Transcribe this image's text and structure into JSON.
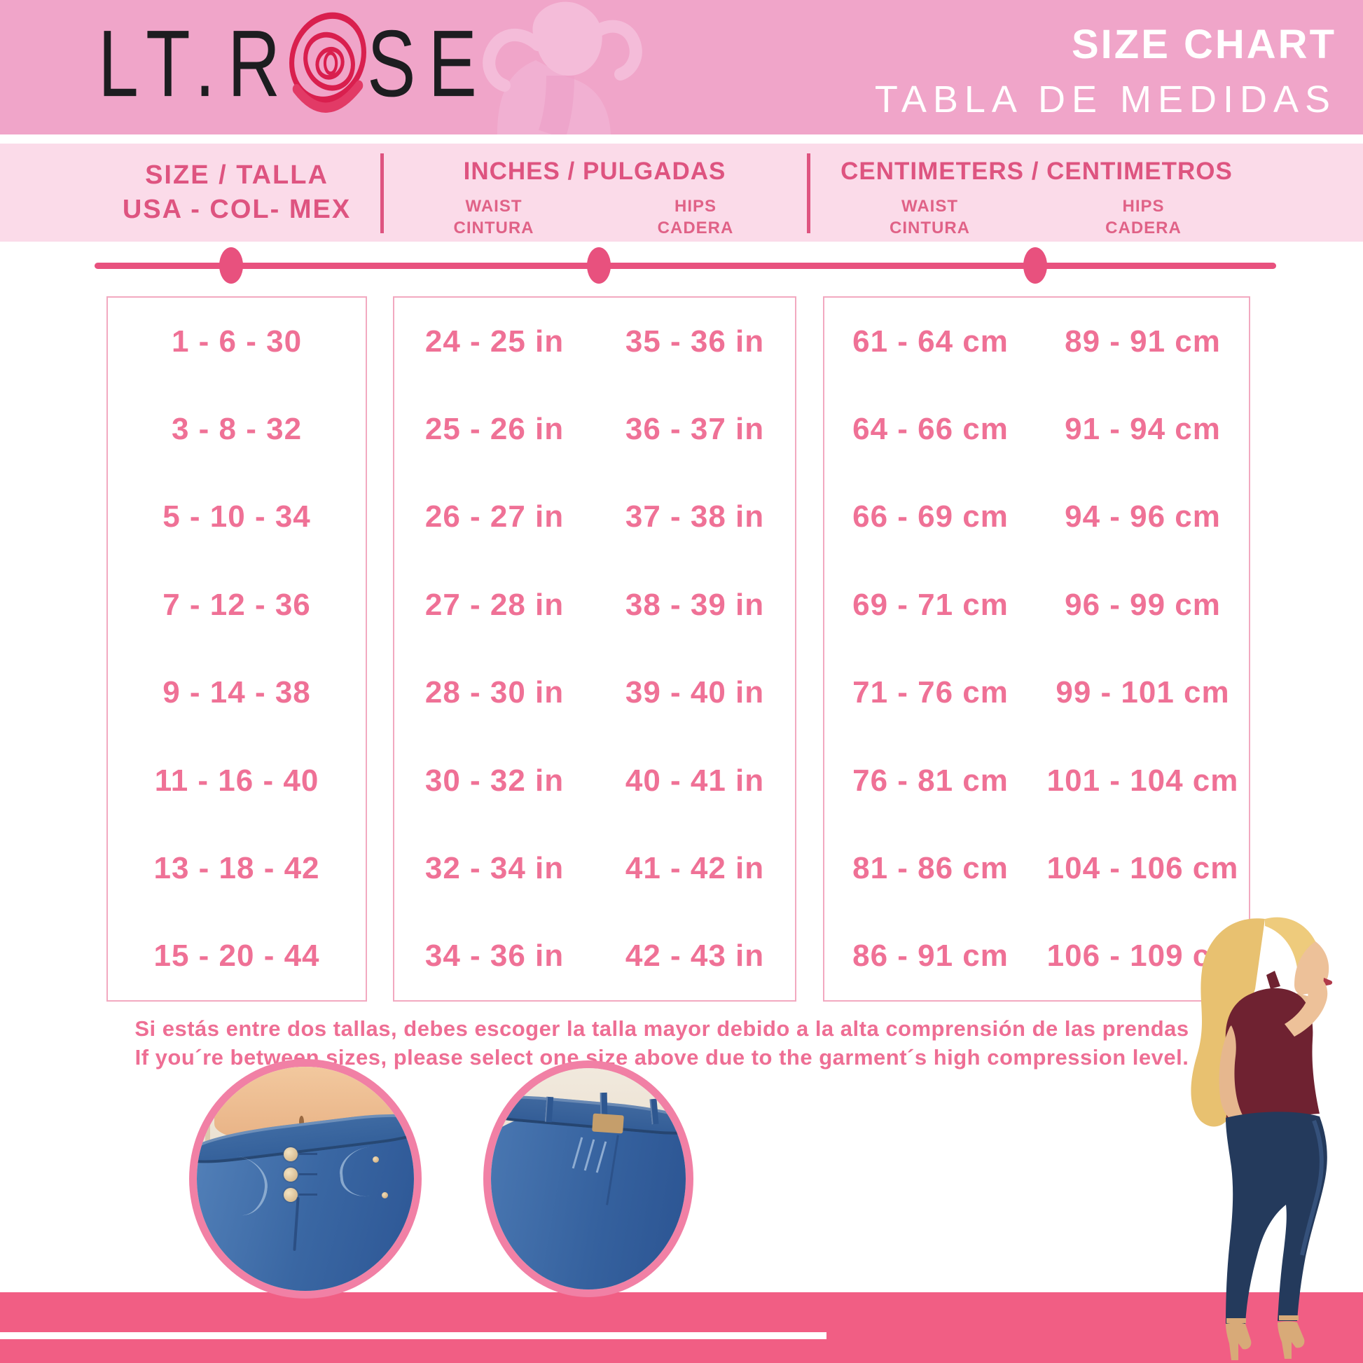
{
  "brand": {
    "logo_prefix": "LT.R",
    "logo_suffix": "SE",
    "rose_icon": "rose-scribble-icon"
  },
  "header": {
    "title": "SIZE CHART",
    "subtitle": "TABLA DE MEDIDAS"
  },
  "table": {
    "col1_header_line1": "SIZE / TALLA",
    "col1_header_line2": "USA - COL- MEX",
    "inches_header": "INCHES / PULGADAS",
    "cm_header": "CENTIMETERS / CENTIMETROS",
    "waist_label_line1": "WAIST",
    "waist_label_line2": "CINTURA",
    "hips_label_line1": "HIPS",
    "hips_label_line2": "CADERA",
    "rows": [
      {
        "size": "1 - 6 - 30",
        "waist_in": "24 - 25 in",
        "hips_in": "35 - 36 in",
        "waist_cm": "61 - 64 cm",
        "hips_cm": "89 - 91 cm"
      },
      {
        "size": "3 - 8 - 32",
        "waist_in": "25 - 26 in",
        "hips_in": "36 - 37 in",
        "waist_cm": "64 - 66 cm",
        "hips_cm": "91 - 94 cm"
      },
      {
        "size": "5 - 10 - 34",
        "waist_in": "26 - 27 in",
        "hips_in": "37 - 38 in",
        "waist_cm": "66 - 69 cm",
        "hips_cm": "94 - 96 cm"
      },
      {
        "size": "7 - 12 - 36",
        "waist_in": "27 - 28 in",
        "hips_in": "38 - 39 in",
        "waist_cm": "69 - 71 cm",
        "hips_cm": "96 - 99 cm"
      },
      {
        "size": "9 - 14 - 38",
        "waist_in": "28 - 30 in",
        "hips_in": "39 - 40 in",
        "waist_cm": "71 - 76 cm",
        "hips_cm": "99 - 101 cm"
      },
      {
        "size": "11 - 16 - 40",
        "waist_in": "30 - 32 in",
        "hips_in": "40 - 41 in",
        "waist_cm": "76 - 81 cm",
        "hips_cm": "101 - 104 cm"
      },
      {
        "size": "13 - 18 - 42",
        "waist_in": "32 - 34 in",
        "hips_in": "41 - 42 in",
        "waist_cm": "81 - 86 cm",
        "hips_cm": "104 - 106 cm"
      },
      {
        "size": "15 - 20 - 44",
        "waist_in": "34 - 36 in",
        "hips_in": "42 - 43 in",
        "waist_cm": "86 - 91 cm",
        "hips_cm": "106 - 109 cm"
      }
    ]
  },
  "note": {
    "line1_es": "Si estás entre dos tallas, debes escoger la talla mayor debido a la alta comprensión de las prendas",
    "line2_en": "If you´re between sizes, please select one size above due to the garment´s high compression level."
  },
  "colors": {
    "banner_pink": "#f0a5c9",
    "band_pink": "#fbdbe9",
    "accent_pink": "#de5480",
    "value_pink": "#ef7196",
    "rule_pink": "#e8517e",
    "footer_pink": "#f15e84",
    "circle_border_pink": "#f180a5",
    "rose_red": "#d91f4e",
    "logo_black": "#1d1d20"
  }
}
